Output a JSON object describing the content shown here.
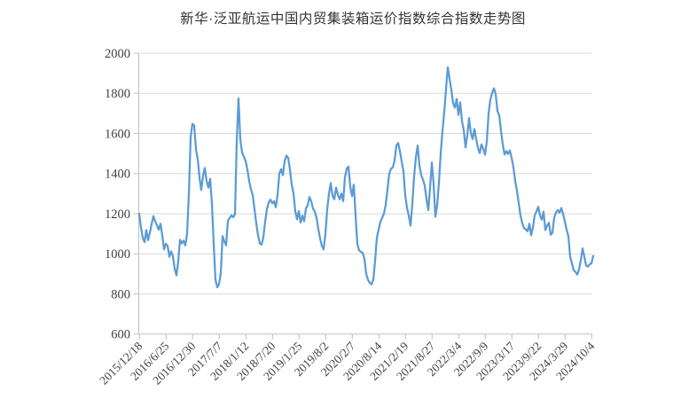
{
  "title": "新华·泛亚航运中国内贸集装箱运价指数综合指数走势图",
  "chart_data": {
    "type": "line",
    "title": "新华·泛亚航运中国内贸集装箱运价指数综合指数走势图",
    "xlabel": "",
    "ylabel": "",
    "ylim": [
      600,
      2000
    ],
    "y_ticks": [
      600,
      800,
      1000,
      1200,
      1400,
      1600,
      1800,
      2000
    ],
    "x_tick_labels": [
      "2015/12/18",
      "2016/6/25",
      "2016/12/30",
      "2017/7/7",
      "2018/1/12",
      "2018/7/20",
      "2019/1/25",
      "2019/8/2",
      "2020/2/7",
      "2020/8/14",
      "2021/2/19",
      "2021/8/27",
      "2022/3/4",
      "2022/9/9",
      "2023/3/17",
      "2023/9/22",
      "2024/3/29",
      "2024/10/4"
    ],
    "legend": "none",
    "grid": "horizontal",
    "colors": {
      "line": "#5B9BD5",
      "grid": "#D9D9D9",
      "axis": "#BFBFBF",
      "tick_label": "#404040",
      "title": "#333333"
    },
    "values": [
      1200,
      1130,
      1080,
      1058,
      1118,
      1068,
      1105,
      1148,
      1188,
      1162,
      1142,
      1120,
      1150,
      1092,
      1022,
      1050,
      1040,
      985,
      1012,
      988,
      925,
      892,
      962,
      1070,
      1052,
      1066,
      1042,
      1100,
      1300,
      1580,
      1648,
      1640,
      1520,
      1472,
      1380,
      1318,
      1390,
      1428,
      1362,
      1330,
      1374,
      1250,
      1050,
      872,
      833,
      848,
      905,
      1088,
      1062,
      1042,
      1165,
      1178,
      1192,
      1182,
      1198,
      1560,
      1775,
      1570,
      1505,
      1484,
      1462,
      1420,
      1362,
      1322,
      1293,
      1222,
      1152,
      1092,
      1052,
      1046,
      1082,
      1160,
      1222,
      1256,
      1270,
      1252,
      1262,
      1232,
      1292,
      1400,
      1422,
      1392,
      1462,
      1490,
      1478,
      1420,
      1345,
      1300,
      1212,
      1172,
      1213,
      1156,
      1190,
      1162,
      1227,
      1242,
      1283,
      1262,
      1226,
      1210,
      1180,
      1122,
      1076,
      1040,
      1022,
      1100,
      1222,
      1300,
      1352,
      1290,
      1272,
      1330,
      1295,
      1272,
      1300,
      1262,
      1381,
      1425,
      1434,
      1335,
      1288,
      1345,
      1190,
      1050,
      1017,
      1010,
      1005,
      975,
      900,
      870,
      855,
      848,
      870,
      965,
      1080,
      1120,
      1160,
      1180,
      1200,
      1245,
      1322,
      1400,
      1425,
      1430,
      1465,
      1540,
      1552,
      1512,
      1460,
      1412,
      1290,
      1230,
      1190,
      1140,
      1248,
      1385,
      1480,
      1540,
      1440,
      1392,
      1370,
      1340,
      1272,
      1218,
      1330,
      1455,
      1350,
      1185,
      1242,
      1355,
      1500,
      1612,
      1705,
      1822,
      1930,
      1872,
      1818,
      1752,
      1728,
      1772,
      1692,
      1755,
      1662,
      1616,
      1530,
      1592,
      1676,
      1602,
      1572,
      1622,
      1572,
      1528,
      1502,
      1545,
      1522,
      1494,
      1560,
      1700,
      1768,
      1802,
      1825,
      1795,
      1712,
      1690,
      1612,
      1545,
      1495,
      1512,
      1498,
      1515,
      1478,
      1432,
      1362,
      1315,
      1252,
      1190,
      1152,
      1128,
      1122,
      1112,
      1150,
      1092,
      1132,
      1192,
      1212,
      1235,
      1192,
      1170,
      1210,
      1118,
      1140,
      1155,
      1095,
      1105,
      1180,
      1205,
      1218,
      1205,
      1228,
      1198,
      1162,
      1120,
      1088,
      985,
      952,
      918,
      910,
      896,
      922,
      968,
      1027,
      985,
      942,
      936,
      948,
      952,
      990
    ]
  }
}
